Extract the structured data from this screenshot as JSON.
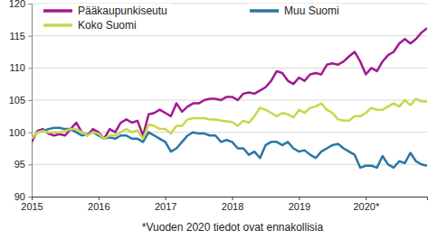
{
  "chart_data": {
    "type": "line",
    "categories": [
      "2015",
      null,
      null,
      null,
      null,
      null,
      null,
      null,
      null,
      null,
      null,
      null,
      "2016",
      null,
      null,
      null,
      null,
      null,
      null,
      null,
      null,
      null,
      null,
      null,
      "2017",
      null,
      null,
      null,
      null,
      null,
      null,
      null,
      null,
      null,
      null,
      null,
      "2018",
      null,
      null,
      null,
      null,
      null,
      null,
      null,
      null,
      null,
      null,
      null,
      "2019",
      null,
      null,
      null,
      null,
      null,
      null,
      null,
      null,
      null,
      null,
      null,
      "2020*",
      null,
      null,
      null,
      null,
      null,
      null,
      null,
      null,
      null,
      null,
      null
    ],
    "series": [
      {
        "name": "Pääkaupunkiseutu",
        "color": "#a3198f",
        "values": [
          98.5,
          100.2,
          100.5,
          99.8,
          99.5,
          99.7,
          99.5,
          100.5,
          101.5,
          100.0,
          99.5,
          100.5,
          100.0,
          99.0,
          100.5,
          100.0,
          101.5,
          102.0,
          101.5,
          101.8,
          99.5,
          102.8,
          103.0,
          103.5,
          103.0,
          102.5,
          104.5,
          103.2,
          104.0,
          104.5,
          104.5,
          105.0,
          105.2,
          105.2,
          105.0,
          105.5,
          105.5,
          105.0,
          106.0,
          106.2,
          106.0,
          106.5,
          107.0,
          108.0,
          109.5,
          109.2,
          108.0,
          107.5,
          108.5,
          108.0,
          109.0,
          109.2,
          109.0,
          110.5,
          110.7,
          110.5,
          111.0,
          111.8,
          112.5,
          111.0,
          109.0,
          110.0,
          109.5,
          111.0,
          112.0,
          112.5,
          113.8,
          114.5,
          113.8,
          114.5,
          115.5,
          116.2
        ]
      },
      {
        "name": "Muu Suomi",
        "color": "#2a76a6",
        "values": [
          99.0,
          100.0,
          100.2,
          100.5,
          100.7,
          100.7,
          100.5,
          100.5,
          100.0,
          99.5,
          99.7,
          100.0,
          99.5,
          99.0,
          99.2,
          99.0,
          99.5,
          99.5,
          99.0,
          99.0,
          98.5,
          100.0,
          99.5,
          99.0,
          98.5,
          97.0,
          97.5,
          98.5,
          99.5,
          100.0,
          99.8,
          99.8,
          99.5,
          99.5,
          98.5,
          98.8,
          98.5,
          97.5,
          97.5,
          96.5,
          97.0,
          96.0,
          98.0,
          98.5,
          98.5,
          98.0,
          98.5,
          97.5,
          97.0,
          97.2,
          96.5,
          96.0,
          97.0,
          97.5,
          98.0,
          98.2,
          97.5,
          97.0,
          96.5,
          94.5,
          94.8,
          94.8,
          94.5,
          96.3,
          95.0,
          94.5,
          95.5,
          95.2,
          96.8,
          95.5,
          95.0,
          94.8
        ]
      },
      {
        "name": "Koko Suomi",
        "color": "#c5d94b",
        "values": [
          99.0,
          100.0,
          100.2,
          100.0,
          100.0,
          100.0,
          100.2,
          100.5,
          100.5,
          100.0,
          99.5,
          100.0,
          99.8,
          99.0,
          99.5,
          99.5,
          100.0,
          100.5,
          100.0,
          100.3,
          99.0,
          101.2,
          101.0,
          100.5,
          100.5,
          99.8,
          101.0,
          101.0,
          102.0,
          102.2,
          102.2,
          102.2,
          102.0,
          102.0,
          101.8,
          101.7,
          101.6,
          101.0,
          101.8,
          101.5,
          102.5,
          103.8,
          103.5,
          103.0,
          102.5,
          103.0,
          102.8,
          102.3,
          103.5,
          103.0,
          103.8,
          104.0,
          104.5,
          103.5,
          103.0,
          102.0,
          101.8,
          101.8,
          102.5,
          102.5,
          103.0,
          103.8,
          103.5,
          103.5,
          104.0,
          104.5,
          104.0,
          105.0,
          104.2,
          105.2,
          104.8,
          104.8
        ]
      }
    ],
    "ylim": [
      90,
      120
    ],
    "yticks": [
      90,
      95,
      100,
      105,
      110,
      115,
      120
    ],
    "grid": true,
    "legend": "top",
    "annotation": "*Vuoden 2020 tiedot ovat ennakollisia"
  }
}
